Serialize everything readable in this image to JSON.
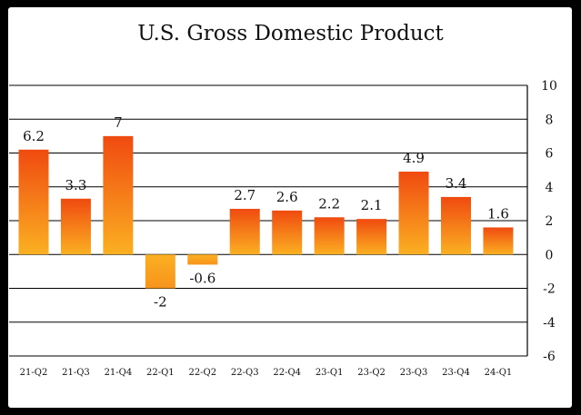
{
  "chart_data": {
    "type": "bar",
    "title": "U.S. Gross Domestic Product",
    "xlabel": "",
    "ylabel": "",
    "categories": [
      "21-Q2",
      "21-Q3",
      "21-Q4",
      "22-Q1",
      "22-Q2",
      "22-Q3",
      "22-Q4",
      "23-Q1",
      "23-Q2",
      "23-Q3",
      "23-Q4",
      "24-Q1"
    ],
    "values": [
      6.2,
      3.3,
      7,
      -2,
      -0.6,
      2.7,
      2.6,
      2.2,
      2.1,
      4.9,
      3.4,
      1.6
    ],
    "value_labels": [
      "6.2",
      "3.3",
      "7",
      "-2",
      "-0.6",
      "2.7",
      "2.6",
      "2.2",
      "2.1",
      "4.9",
      "3.4",
      "1.6"
    ],
    "ylim": [
      -6,
      10
    ],
    "yticks": [
      10,
      8,
      6,
      4,
      2,
      0,
      -2,
      -4,
      -6
    ],
    "ytick_labels": [
      "10",
      "8",
      "6",
      "4",
      "2",
      "0",
      "-2",
      "-4",
      "-6"
    ],
    "grid": true,
    "y_axis_side": "right",
    "legend": "none",
    "colors": {
      "bar_top": "#f04a10",
      "bar_bottom": "#fbb022",
      "neg_top": "#fbb022",
      "neg_bottom": "#f7941d",
      "grid": "#000000",
      "frame_bg": "#ffffff",
      "outer_bg": "#000000"
    }
  }
}
